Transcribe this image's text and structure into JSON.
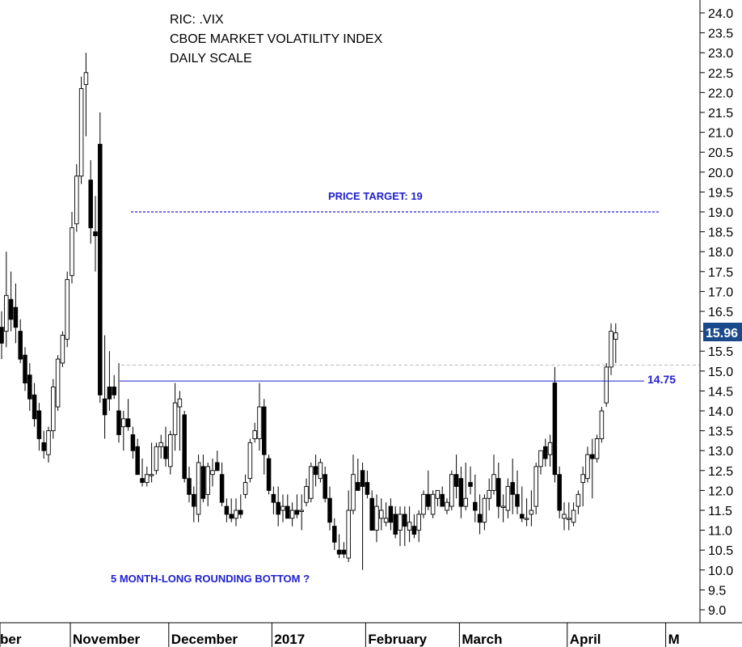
{
  "chart_data": {
    "type": "candlestick",
    "title_lines": [
      "RIC: .VIX",
      "CBOE MARKET VOLATILITY INDEX",
      "DAILY SCALE"
    ],
    "annotations": {
      "price_target": "PRICE TARGET: 19",
      "pattern": "5 MONTH-LONG ROUNDING BOTTOM ?",
      "resistance_label": "14.75",
      "last_price": "15.96"
    },
    "levels": {
      "price_target": 19.0,
      "resistance": 14.75,
      "grey_dashed": 15.15
    },
    "y_axis": {
      "min": 8.75,
      "max": 24.2,
      "ticks": [
        "24.0",
        "23.5",
        "23.0",
        "22.5",
        "22.0",
        "21.5",
        "21.0",
        "20.5",
        "20.0",
        "19.5",
        "19.0",
        "18.5",
        "18.0",
        "17.5",
        "17.0",
        "16.5",
        "16.0",
        "15.5",
        "15.0",
        "14.5",
        "14.0",
        "13.5",
        "13.0",
        "12.5",
        "12.0",
        "11.5",
        "11.0",
        "10.5",
        "10.0",
        "9.5",
        "9.0"
      ]
    },
    "x_axis": {
      "months": [
        {
          "label": "ber",
          "bar": 0
        },
        {
          "label": "November",
          "bar": 15
        },
        {
          "label": "December",
          "bar": 36
        },
        {
          "label": "2017",
          "bar": 58
        },
        {
          "label": "February",
          "bar": 78
        },
        {
          "label": "March",
          "bar": 98
        },
        {
          "label": "April",
          "bar": 121
        },
        {
          "label": "M",
          "bar": 142
        }
      ]
    },
    "candles": [
      [
        16.1,
        16.5,
        15.3,
        15.7
      ],
      [
        16.0,
        18.0,
        15.6,
        16.9
      ],
      [
        16.8,
        17.5,
        16.0,
        16.3
      ],
      [
        16.6,
        17.2,
        15.7,
        16.1
      ],
      [
        16.0,
        16.3,
        15.2,
        15.3
      ],
      [
        15.4,
        15.6,
        14.5,
        14.7
      ],
      [
        14.9,
        15.2,
        14.0,
        14.3
      ],
      [
        14.4,
        14.7,
        13.6,
        13.8
      ],
      [
        14.0,
        14.2,
        13.0,
        13.3
      ],
      [
        13.2,
        13.5,
        12.8,
        13.0
      ],
      [
        12.9,
        13.6,
        12.7,
        13.5
      ],
      [
        13.5,
        14.8,
        13.3,
        14.6
      ],
      [
        14.1,
        15.4,
        14.0,
        15.3
      ],
      [
        15.2,
        16.0,
        15.1,
        15.9
      ],
      [
        15.8,
        17.5,
        15.6,
        17.3
      ],
      [
        17.4,
        19.0,
        17.2,
        18.6
      ],
      [
        18.7,
        20.2,
        18.5,
        19.9
      ],
      [
        19.9,
        22.4,
        19.7,
        22.1
      ],
      [
        22.2,
        23.0,
        20.9,
        22.5
      ],
      [
        19.8,
        20.3,
        18.2,
        18.6
      ],
      [
        18.5,
        19.4,
        17.5,
        18.4
      ],
      [
        20.7,
        21.5,
        14.2,
        14.4
      ],
      [
        14.3,
        15.9,
        13.3,
        13.9
      ],
      [
        14.6,
        15.5,
        14.0,
        14.3
      ],
      [
        14.6,
        14.9,
        14.3,
        14.4
      ],
      [
        14.0,
        15.2,
        13.2,
        13.4
      ],
      [
        13.6,
        14.0,
        13.0,
        13.8
      ],
      [
        13.8,
        14.3,
        13.5,
        13.6
      ],
      [
        13.4,
        13.6,
        12.8,
        13.0
      ],
      [
        13.1,
        13.3,
        12.4,
        12.4
      ],
      [
        12.3,
        12.8,
        12.1,
        12.2
      ],
      [
        12.2,
        12.6,
        12.1,
        12.4
      ],
      [
        12.4,
        13.2,
        12.2,
        12.4
      ],
      [
        12.5,
        13.2,
        12.4,
        13.1
      ],
      [
        13.1,
        13.4,
        12.8,
        13.2
      ],
      [
        13.1,
        13.6,
        12.6,
        12.8
      ],
      [
        12.6,
        13.5,
        12.4,
        13.4
      ],
      [
        13.4,
        14.7,
        13.0,
        14.2
      ],
      [
        14.1,
        14.5,
        13.0,
        14.3
      ],
      [
        13.9,
        14.0,
        12.2,
        12.3
      ],
      [
        12.3,
        12.6,
        11.7,
        11.9
      ],
      [
        11.9,
        12.1,
        11.2,
        11.6
      ],
      [
        11.4,
        12.9,
        11.2,
        12.7
      ],
      [
        12.6,
        12.9,
        11.7,
        11.8
      ],
      [
        11.9,
        12.7,
        11.6,
        12.6
      ],
      [
        12.4,
        12.8,
        12.1,
        12.5
      ],
      [
        12.7,
        13.0,
        12.5,
        12.5
      ],
      [
        12.4,
        12.7,
        11.6,
        11.7
      ],
      [
        11.6,
        11.8,
        11.2,
        11.4
      ],
      [
        11.4,
        11.8,
        11.2,
        11.3
      ],
      [
        11.3,
        11.8,
        11.1,
        11.5
      ],
      [
        11.5,
        11.9,
        11.3,
        11.4
      ],
      [
        11.9,
        12.4,
        11.8,
        12.2
      ],
      [
        12.3,
        13.3,
        12.2,
        13.2
      ],
      [
        13.3,
        13.7,
        13.2,
        13.5
      ],
      [
        13.3,
        14.7,
        13.0,
        14.1
      ],
      [
        14.1,
        14.3,
        12.4,
        12.9
      ],
      [
        12.8,
        12.9,
        11.9,
        12.0
      ],
      [
        11.9,
        12.1,
        11.4,
        11.7
      ],
      [
        11.7,
        12.1,
        11.1,
        11.4
      ],
      [
        11.5,
        11.9,
        11.2,
        11.6
      ],
      [
        11.6,
        11.9,
        11.3,
        11.3
      ],
      [
        11.3,
        11.7,
        11.1,
        11.5
      ],
      [
        11.5,
        11.9,
        11.3,
        11.4
      ],
      [
        11.5,
        11.9,
        11.0,
        11.5
      ],
      [
        11.7,
        12.3,
        11.6,
        12.1
      ],
      [
        11.8,
        12.7,
        11.7,
        12.6
      ],
      [
        12.6,
        12.9,
        12.1,
        12.4
      ],
      [
        12.3,
        12.8,
        12.2,
        12.7
      ],
      [
        12.4,
        12.6,
        11.7,
        11.8
      ],
      [
        11.8,
        12.1,
        11.0,
        11.2
      ],
      [
        11.1,
        11.3,
        10.5,
        10.7
      ],
      [
        10.5,
        10.9,
        10.3,
        10.4
      ],
      [
        10.5,
        10.7,
        10.3,
        10.4
      ],
      [
        10.3,
        12.0,
        10.2,
        11.5
      ],
      [
        11.5,
        12.9,
        11.4,
        12.4
      ],
      [
        12.2,
        12.8,
        12.0,
        12.0
      ],
      [
        12.5,
        12.7,
        10.0,
        12.1
      ],
      [
        12.2,
        12.5,
        11.8,
        11.9
      ],
      [
        11.8,
        12.0,
        11.1,
        11.0
      ],
      [
        11.0,
        11.9,
        10.7,
        11.6
      ],
      [
        11.3,
        11.8,
        11.0,
        11.5
      ],
      [
        11.2,
        11.7,
        11.1,
        11.3
      ],
      [
        11.6,
        11.8,
        11.0,
        11.2
      ],
      [
        11.4,
        11.6,
        10.8,
        10.9
      ],
      [
        11.0,
        11.6,
        10.6,
        11.4
      ],
      [
        11.4,
        11.6,
        10.6,
        11.1
      ],
      [
        11.0,
        11.6,
        10.7,
        11.2
      ],
      [
        11.1,
        11.4,
        10.8,
        10.9
      ],
      [
        11.0,
        11.5,
        10.7,
        11.4
      ],
      [
        11.4,
        12.0,
        11.3,
        11.9
      ],
      [
        11.9,
        12.5,
        11.5,
        11.6
      ],
      [
        11.4,
        12.0,
        11.3,
        11.9
      ],
      [
        11.8,
        12.0,
        11.6,
        12.0
      ],
      [
        11.9,
        12.1,
        11.6,
        11.6
      ],
      [
        11.5,
        11.8,
        11.4,
        11.7
      ],
      [
        11.6,
        12.5,
        11.5,
        12.4
      ],
      [
        12.4,
        12.9,
        11.8,
        12.1
      ],
      [
        12.3,
        12.6,
        11.3,
        11.6
      ],
      [
        11.6,
        12.7,
        11.5,
        11.8
      ],
      [
        12.2,
        12.6,
        11.9,
        12.1
      ],
      [
        11.7,
        12.4,
        11.2,
        11.5
      ],
      [
        11.4,
        11.9,
        10.9,
        11.2
      ],
      [
        11.2,
        11.9,
        11.0,
        11.8
      ],
      [
        11.8,
        12.3,
        11.5,
        12.0
      ],
      [
        12.0,
        12.9,
        11.9,
        12.4
      ],
      [
        12.3,
        12.7,
        11.3,
        11.6
      ],
      [
        11.6,
        11.9,
        11.2,
        11.6
      ],
      [
        11.5,
        12.3,
        11.3,
        12.1
      ],
      [
        12.2,
        12.8,
        11.4,
        11.9
      ],
      [
        11.9,
        12.5,
        11.4,
        11.6
      ],
      [
        11.4,
        12.1,
        11.2,
        11.3
      ],
      [
        11.3,
        11.8,
        11.1,
        11.3
      ],
      [
        11.4,
        12.0,
        11.1,
        11.5
      ],
      [
        11.6,
        12.7,
        11.4,
        12.6
      ],
      [
        12.6,
        13.0,
        12.4,
        13.0
      ],
      [
        13.1,
        13.3,
        12.6,
        12.8
      ],
      [
        12.9,
        13.4,
        12.6,
        13.2
      ],
      [
        14.7,
        15.1,
        12.2,
        12.4
      ],
      [
        12.4,
        12.6,
        11.3,
        11.5
      ],
      [
        11.3,
        11.7,
        11.0,
        11.4
      ],
      [
        11.3,
        11.7,
        11.0,
        11.3
      ],
      [
        11.2,
        11.7,
        11.1,
        11.5
      ],
      [
        11.6,
        12.0,
        11.4,
        11.9
      ],
      [
        12.2,
        12.6,
        11.6,
        12.4
      ],
      [
        12.3,
        13.1,
        12.2,
        12.9
      ],
      [
        12.9,
        13.3,
        11.8,
        12.8
      ],
      [
        12.8,
        13.4,
        12.7,
        13.3
      ],
      [
        13.3,
        14.1,
        13.2,
        14.0
      ],
      [
        14.2,
        15.2,
        14.1,
        15.1
      ],
      [
        15.1,
        16.2,
        14.9,
        16.0
      ],
      [
        15.8,
        16.2,
        15.2,
        15.96
      ]
    ],
    "grid": false
  }
}
